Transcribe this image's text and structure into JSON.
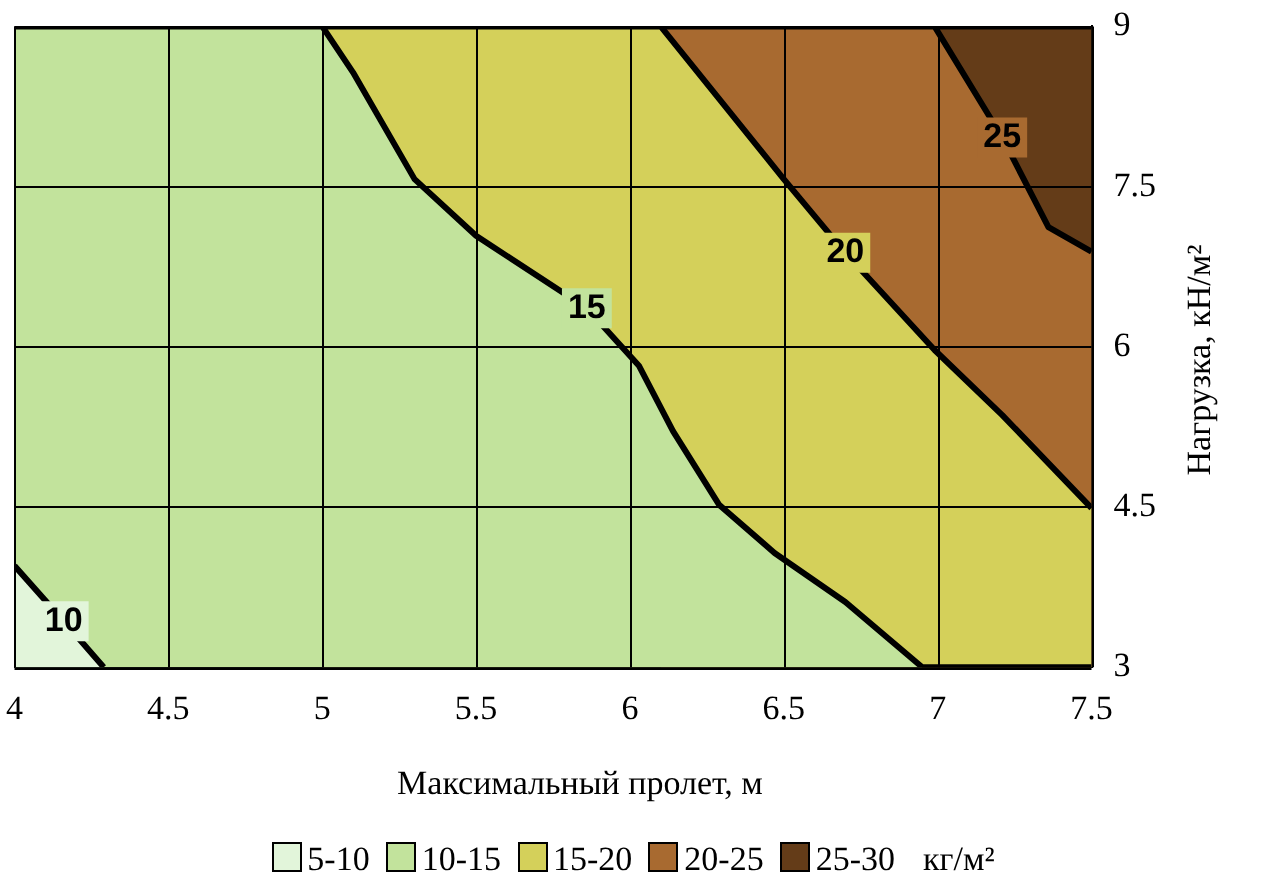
{
  "chart_data": {
    "type": "area",
    "xlabel": "Максимальный пролет, м",
    "ylabel": "Нагрузка, кН/м²",
    "legend_title": "кг/м²",
    "legend": "bottom",
    "grid": true,
    "xlim": [
      4,
      7.5
    ],
    "xticks": [
      4,
      4.5,
      5,
      5.5,
      6,
      6.5,
      7,
      7.5
    ],
    "ylim": [
      3,
      9
    ],
    "yticks": [
      3,
      4.5,
      6,
      7.5,
      9
    ],
    "series": [
      {
        "name": "5-10",
        "color": "#e2f5da",
        "x": [
          4,
          4.16,
          4.29
        ],
        "values": [
          3.95,
          3.43,
          3
        ]
      },
      {
        "name": "10-15",
        "color": "#c2e39c",
        "x": [
          4,
          5,
          5.1,
          5.3,
          5.5,
          5.86,
          6.03,
          6.14,
          6.29,
          6.47,
          6.7,
          6.95,
          7.5
        ],
        "values": [
          9,
          9,
          8.57,
          7.57,
          7.04,
          6.36,
          5.82,
          5.21,
          4.52,
          4.07,
          3.61,
          3,
          3
        ]
      },
      {
        "name": "15-20",
        "color": "#d4d05a",
        "x": [
          5,
          6.1,
          6.5,
          6.7,
          6.99,
          7.21,
          7.5
        ],
        "values": [
          9,
          9,
          7.57,
          6.88,
          5.97,
          5.36,
          4.49
        ]
      },
      {
        "name": "20-25",
        "color": "#a86a30",
        "x": [
          6.1,
          6.99,
          7.21,
          7.36,
          7.5
        ],
        "values": [
          9,
          9,
          7.96,
          7.12,
          6.89
        ]
      },
      {
        "name": "25-30",
        "color": "#643c18",
        "x": [
          6.99,
          7.5
        ],
        "values": [
          9,
          9
        ]
      }
    ],
    "annotations": [
      {
        "text": "10",
        "x": 4.16,
        "y": 3.43
      },
      {
        "text": "15",
        "x": 5.86,
        "y": 6.36
      },
      {
        "text": "20",
        "x": 6.7,
        "y": 6.88
      },
      {
        "text": "25",
        "x": 7.21,
        "y": 7.96
      }
    ]
  }
}
